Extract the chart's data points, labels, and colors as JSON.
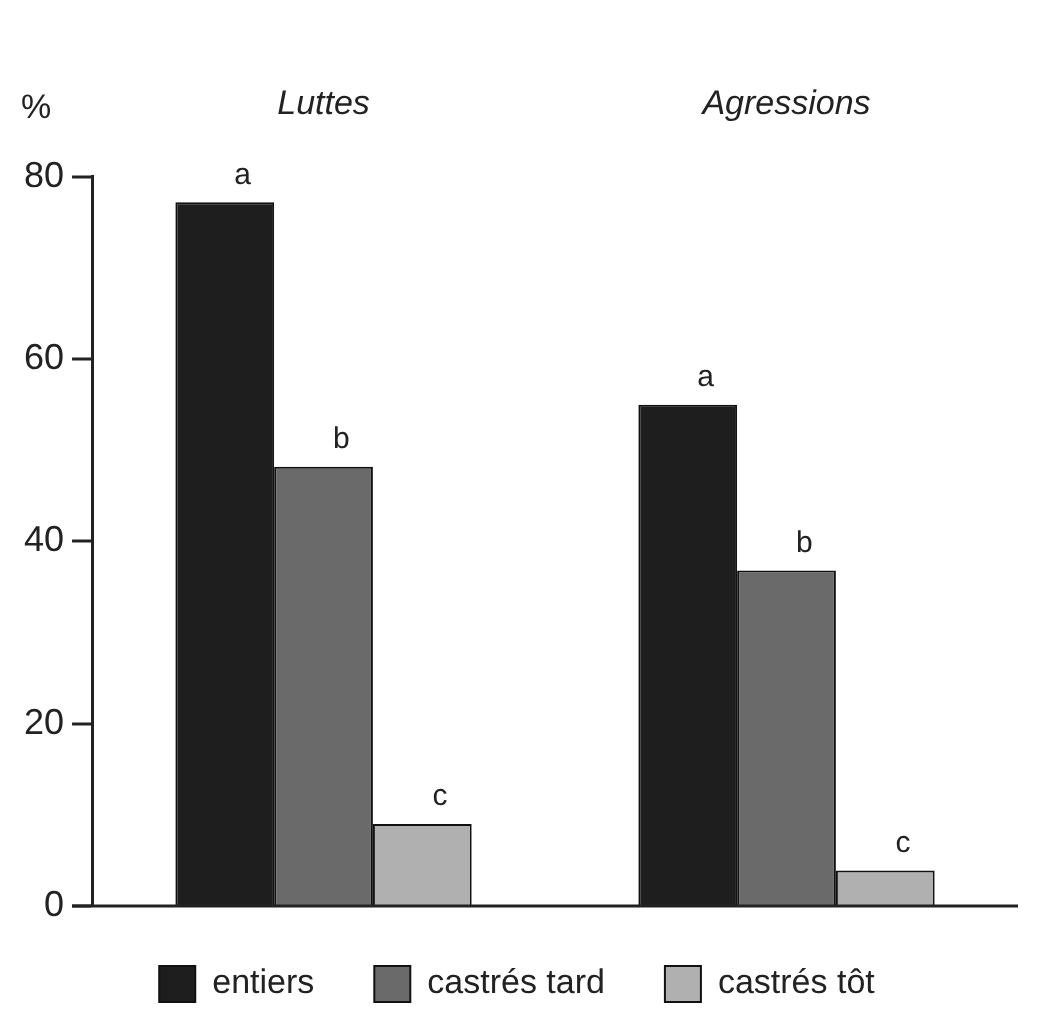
{
  "chart_data": {
    "type": "bar",
    "ylabel": "%",
    "categories": [
      "Luttes",
      "Agressions"
    ],
    "series": [
      {
        "name": "entiers",
        "color": "#1e1e1e",
        "values": [
          77.2,
          55.0
        ],
        "value_labels": [
          "a",
          "a"
        ]
      },
      {
        "name": "castrés tard",
        "color": "#6a6a6a",
        "values": [
          48.2,
          36.8
        ],
        "value_labels": [
          "b",
          "b"
        ]
      },
      {
        "name": "castrés tôt",
        "color": "#b0b0b0",
        "values": [
          9.0,
          3.9
        ],
        "value_labels": [
          "c",
          "c"
        ]
      }
    ],
    "ylim": [
      0,
      80
    ],
    "yticks": [
      0,
      20,
      40,
      60,
      80
    ],
    "grid": false,
    "legend": "bottom"
  }
}
